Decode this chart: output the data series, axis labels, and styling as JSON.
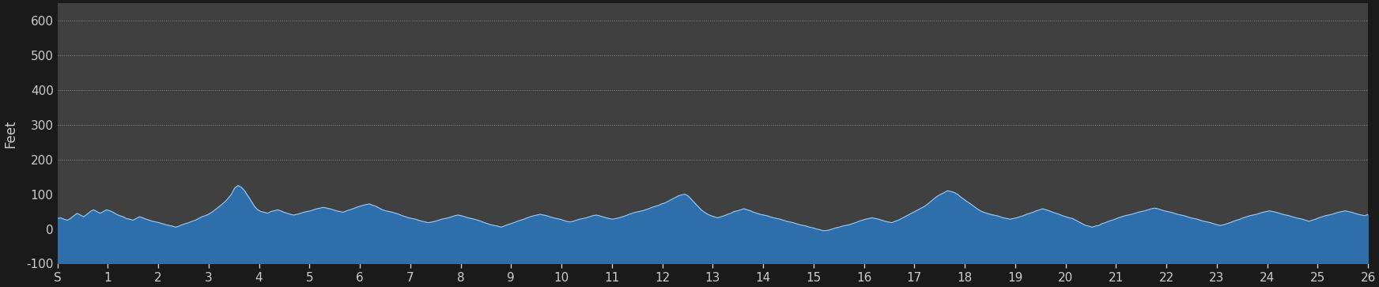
{
  "background_color": "#1a1a1a",
  "plot_bg_color": "#404040",
  "fill_color": "#2e6eaa",
  "line_color": "#a8c8e8",
  "grid_color": "#888888",
  "ylabel": "Feet",
  "ylabel_color": "#cccccc",
  "tick_color": "#cccccc",
  "ylim": [
    -100,
    650
  ],
  "yticks": [
    -100,
    0,
    100,
    200,
    300,
    400,
    500,
    600
  ],
  "ytick_labels": [
    "-100",
    "0",
    "100",
    "200",
    "300",
    "400",
    "500",
    "600"
  ],
  "grid_yticks": [
    200,
    300,
    400,
    500,
    600
  ],
  "xtick_labels": [
    "S",
    "1",
    "2",
    "3",
    "4",
    "5",
    "6",
    "7",
    "8",
    "9",
    "10",
    "11",
    "12",
    "13",
    "14",
    "15",
    "16",
    "17",
    "18",
    "19",
    "20",
    "21",
    "22",
    "23",
    "24",
    "25",
    "26"
  ],
  "elevation_data": [
    30,
    32,
    28,
    25,
    30,
    38,
    45,
    40,
    35,
    42,
    50,
    55,
    50,
    45,
    50,
    55,
    52,
    48,
    42,
    38,
    35,
    30,
    28,
    25,
    30,
    35,
    32,
    28,
    25,
    22,
    20,
    18,
    15,
    12,
    10,
    8,
    5,
    8,
    12,
    15,
    18,
    22,
    25,
    30,
    35,
    38,
    42,
    48,
    55,
    62,
    70,
    78,
    88,
    100,
    118,
    125,
    120,
    110,
    95,
    80,
    65,
    55,
    50,
    48,
    45,
    50,
    52,
    55,
    52,
    48,
    45,
    42,
    40,
    42,
    45,
    48,
    50,
    52,
    55,
    58,
    60,
    62,
    60,
    58,
    55,
    52,
    50,
    48,
    52,
    55,
    58,
    62,
    65,
    68,
    70,
    72,
    68,
    65,
    60,
    55,
    52,
    50,
    48,
    45,
    42,
    38,
    35,
    32,
    30,
    28,
    25,
    22,
    20,
    18,
    20,
    22,
    25,
    28,
    30,
    32,
    35,
    38,
    40,
    38,
    35,
    32,
    30,
    28,
    25,
    22,
    18,
    15,
    12,
    10,
    8,
    5,
    8,
    12,
    15,
    18,
    22,
    25,
    28,
    32,
    35,
    38,
    40,
    42,
    40,
    38,
    35,
    32,
    30,
    28,
    25,
    22,
    20,
    22,
    25,
    28,
    30,
    32,
    35,
    38,
    40,
    38,
    35,
    32,
    30,
    28,
    30,
    32,
    35,
    38,
    42,
    45,
    48,
    50,
    52,
    55,
    58,
    62,
    65,
    68,
    72,
    75,
    80,
    85,
    90,
    95,
    98,
    100,
    95,
    85,
    75,
    65,
    55,
    48,
    42,
    38,
    35,
    32,
    35,
    38,
    42,
    45,
    50,
    52,
    55,
    58,
    55,
    52,
    48,
    45,
    42,
    40,
    38,
    35,
    32,
    30,
    28,
    25,
    22,
    20,
    18,
    15,
    12,
    10,
    8,
    5,
    3,
    0,
    -2,
    -5,
    -5,
    -3,
    0,
    3,
    5,
    8,
    10,
    12,
    15,
    18,
    22,
    25,
    28,
    30,
    32,
    30,
    28,
    25,
    22,
    20,
    18,
    22,
    25,
    30,
    35,
    40,
    45,
    50,
    55,
    60,
    65,
    72,
    80,
    88,
    95,
    100,
    105,
    110,
    108,
    105,
    100,
    92,
    85,
    78,
    72,
    65,
    58,
    52,
    48,
    45,
    42,
    40,
    38,
    35,
    32,
    30,
    28,
    30,
    32,
    35,
    38,
    42,
    45,
    48,
    52,
    55,
    58,
    55,
    52,
    48,
    45,
    42,
    38,
    35,
    32,
    30,
    25,
    20,
    15,
    10,
    8,
    5,
    8,
    10,
    15,
    18,
    22,
    25,
    28,
    32,
    35,
    38,
    40,
    42,
    45,
    48,
    50,
    52,
    55,
    58,
    60,
    58,
    55,
    52,
    50,
    48,
    45,
    42,
    40,
    38,
    35,
    32,
    30,
    28,
    25,
    22,
    20,
    18,
    15,
    12,
    10,
    12,
    15,
    18,
    22,
    25,
    28,
    32,
    35,
    38,
    40,
    42,
    45,
    48,
    50,
    52,
    50,
    48,
    45,
    42,
    40,
    38,
    35,
    32,
    30,
    28,
    25,
    22,
    25,
    28,
    32,
    35,
    38,
    40,
    42,
    45,
    48,
    50,
    52,
    50,
    48,
    45,
    42,
    40,
    38,
    42
  ]
}
